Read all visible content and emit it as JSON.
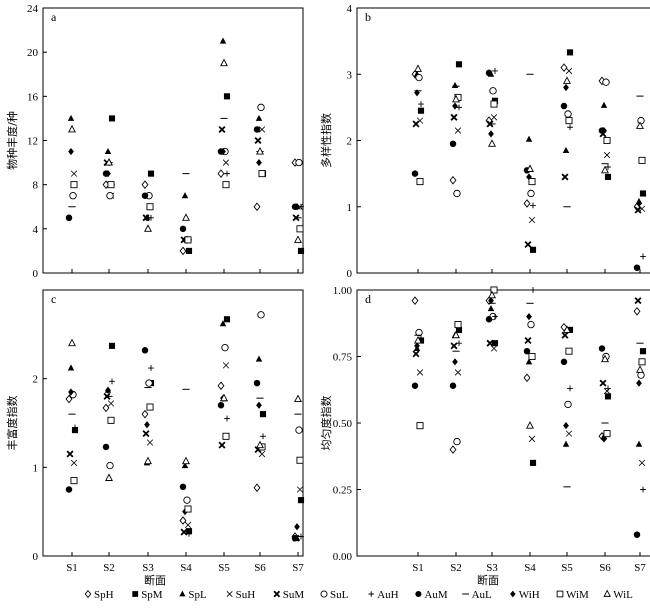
{
  "chart_data": [
    {
      "type": "scatter",
      "panel_label": "a",
      "ylabel": "物种丰度/种",
      "xlabel": "",
      "ylim": [
        0,
        24
      ],
      "yticks": [
        0,
        4,
        8,
        12,
        16,
        20,
        24
      ],
      "ytick_labels": [
        "0",
        "4",
        "8",
        "12",
        "16",
        "20",
        "24"
      ],
      "categories": [
        "S1",
        "S2",
        "S3",
        "S4",
        "S5",
        "S6",
        "S7"
      ],
      "series": [
        {
          "name": "SpH",
          "values": [
            null,
            8,
            8,
            2,
            9,
            6,
            10
          ]
        },
        {
          "name": "SpM",
          "values": [
            null,
            14,
            9,
            2,
            16,
            9,
            2
          ]
        },
        {
          "name": "SpL",
          "values": [
            14,
            11,
            5,
            7,
            21,
            14,
            6
          ]
        },
        {
          "name": "SuH",
          "values": [
            9,
            7,
            6,
            3,
            10,
            13,
            6
          ]
        },
        {
          "name": "SuM",
          "values": [
            null,
            10,
            5,
            3,
            13,
            12,
            5
          ]
        },
        {
          "name": "SuL",
          "values": [
            7,
            7,
            7,
            3,
            11,
            15,
            10
          ]
        },
        {
          "name": "AuH",
          "values": [
            null,
            8,
            5,
            3,
            9,
            9,
            6
          ]
        },
        {
          "name": "AuM",
          "values": [
            5,
            9,
            7,
            4,
            11,
            13,
            6
          ]
        },
        {
          "name": "AuL",
          "values": [
            6,
            10,
            5,
            9,
            14,
            11,
            5
          ]
        },
        {
          "name": "WiH",
          "values": [
            11,
            9,
            5,
            3,
            11,
            10,
            6
          ]
        },
        {
          "name": "WiM",
          "values": [
            8,
            8,
            6,
            3,
            8,
            9,
            4
          ]
        },
        {
          "name": "WiL",
          "values": [
            13,
            10,
            4,
            5,
            19,
            11,
            3
          ]
        }
      ]
    },
    {
      "type": "scatter",
      "panel_label": "b",
      "ylabel": "多样性指数",
      "xlabel": "",
      "ylim": [
        0,
        4
      ],
      "yticks": [
        0,
        1,
        2,
        3,
        4
      ],
      "ytick_labels": [
        "0",
        "1",
        "2",
        "3",
        "4"
      ],
      "categories": [
        "S1",
        "S2",
        "S3",
        "S4",
        "S5",
        "S6",
        "S7"
      ],
      "series": [
        {
          "name": "SpH",
          "values": [
            3.0,
            1.4,
            2.3,
            1.05,
            3.1,
            2.9,
            1.0
          ]
        },
        {
          "name": "SpM",
          "values": [
            2.45,
            3.15,
            2.6,
            0.35,
            3.33,
            1.45,
            1.2
          ]
        },
        {
          "name": "SpL",
          "values": [
            3.0,
            2.83,
            3.0,
            2.02,
            1.85,
            2.53,
            1.08
          ]
        },
        {
          "name": "SuH",
          "values": [
            2.3,
            2.15,
            2.35,
            0.8,
            3.05,
            1.78,
            0.97
          ]
        },
        {
          "name": "SuM",
          "values": [
            2.25,
            2.35,
            2.25,
            0.43,
            1.45,
            2.1,
            0.95
          ]
        },
        {
          "name": "SuL",
          "values": [
            2.95,
            1.2,
            2.75,
            1.2,
            2.4,
            2.88,
            2.3
          ]
        },
        {
          "name": "AuH",
          "values": [
            2.55,
            2.5,
            3.05,
            1.02,
            2.2,
            1.6,
            0.25
          ]
        },
        {
          "name": "AuM",
          "values": [
            1.5,
            1.95,
            3.02,
            1.55,
            2.52,
            2.15,
            0.08
          ]
        },
        {
          "name": "AuL",
          "values": [
            2.75,
            2.82,
            2.25,
            3.0,
            1.0,
            1.65,
            2.67
          ]
        },
        {
          "name": "WiH",
          "values": [
            2.72,
            2.52,
            2.1,
            1.45,
            2.8,
            2.15,
            1.05
          ]
        },
        {
          "name": "WiM",
          "values": [
            1.38,
            2.65,
            2.55,
            1.38,
            2.3,
            2.0,
            1.7
          ]
        },
        {
          "name": "WiL",
          "values": [
            3.08,
            2.62,
            1.95,
            1.57,
            2.9,
            1.55,
            2.22
          ]
        }
      ]
    },
    {
      "type": "scatter",
      "panel_label": "c",
      "ylabel": "丰富度指数",
      "xlabel": "断面",
      "ylim": [
        0,
        3
      ],
      "yticks": [
        0,
        1,
        2
      ],
      "ytick_labels": [
        "0",
        "1",
        "2"
      ],
      "categories": [
        "S1",
        "S2",
        "S3",
        "S4",
        "S5",
        "S6",
        "S7"
      ],
      "series": [
        {
          "name": "SpH",
          "values": [
            1.77,
            1.67,
            1.6,
            0.4,
            1.92,
            0.77,
            0.22
          ]
        },
        {
          "name": "SpM",
          "values": [
            1.42,
            2.37,
            1.95,
            0.28,
            2.67,
            1.6,
            0.63
          ]
        },
        {
          "name": "SpL",
          "values": [
            2.12,
            1.87,
            1.05,
            1.02,
            2.62,
            2.22,
            0.2
          ]
        },
        {
          "name": "SuH",
          "values": [
            1.05,
            1.72,
            1.28,
            0.35,
            2.15,
            1.15,
            0.75
          ]
        },
        {
          "name": "SuM",
          "values": [
            1.15,
            1.8,
            1.38,
            0.27,
            1.25,
            1.2,
            0.2
          ]
        },
        {
          "name": "SuL",
          "values": [
            1.82,
            1.02,
            1.95,
            0.63,
            2.35,
            2.72,
            1.42
          ]
        },
        {
          "name": "AuH",
          "values": [
            1.45,
            1.97,
            2.12,
            0.25,
            1.55,
            1.35,
            0.22
          ]
        },
        {
          "name": "AuM",
          "values": [
            0.75,
            1.23,
            2.32,
            0.78,
            1.7,
            1.95,
            0.2
          ]
        },
        {
          "name": "AuL",
          "values": [
            1.6,
            1.8,
            1.9,
            1.88,
            1.75,
            1.78,
            1.6
          ]
        },
        {
          "name": "WiH",
          "values": [
            1.85,
            1.87,
            1.48,
            0.5,
            1.78,
            1.7,
            0.33
          ]
        },
        {
          "name": "WiM",
          "values": [
            0.85,
            1.53,
            1.68,
            0.53,
            1.35,
            1.23,
            1.08
          ]
        },
        {
          "name": "WiL",
          "values": [
            2.4,
            0.88,
            1.07,
            1.07,
            1.78,
            1.25,
            1.77
          ]
        }
      ]
    },
    {
      "type": "scatter",
      "panel_label": "d",
      "ylabel": "均匀度指数",
      "xlabel": "断面",
      "ylim": [
        0,
        1.0
      ],
      "yticks": [
        0,
        0.25,
        0.5,
        0.75,
        1.0
      ],
      "ytick_labels": [
        "0.00",
        "0.25",
        "0.50",
        "0.75",
        "1.00"
      ],
      "categories": [
        "S1",
        "S2",
        "S3",
        "S4",
        "S5",
        "S6",
        "S7"
      ],
      "series": [
        {
          "name": "SpH",
          "values": [
            0.96,
            0.4,
            0.96,
            0.67,
            0.86,
            0.45,
            0.92
          ]
        },
        {
          "name": "SpM",
          "values": [
            0.81,
            0.85,
            0.8,
            0.35,
            0.85,
            0.6,
            0.77
          ]
        },
        {
          "name": "SpL",
          "values": [
            0.78,
            0.83,
            0.93,
            0.73,
            0.42,
            0.45,
            0.42
          ]
        },
        {
          "name": "SuH",
          "values": [
            0.69,
            0.69,
            0.78,
            0.44,
            0.46,
            0.62,
            0.35
          ]
        },
        {
          "name": "SuM",
          "values": [
            0.76,
            0.79,
            0.8,
            0.81,
            0.83,
            0.65,
            0.96
          ]
        },
        {
          "name": "SuL",
          "values": [
            0.84,
            0.43,
            0.9,
            0.87,
            0.57,
            0.75,
            0.68
          ]
        },
        {
          "name": "AuH",
          "values": [
            0.82,
            0.8,
            0.9,
            1.0,
            0.63,
            0.63,
            0.25
          ]
        },
        {
          "name": "AuM",
          "values": [
            0.64,
            0.64,
            0.89,
            0.77,
            0.73,
            0.78,
            0.08
          ]
        },
        {
          "name": "AuL",
          "values": [
            0.83,
            0.77,
            0.95,
            0.95,
            0.26,
            0.5,
            0.8
          ]
        },
        {
          "name": "WiH",
          "values": [
            0.79,
            0.73,
            0.96,
            0.9,
            0.49,
            0.44,
            0.65
          ]
        },
        {
          "name": "WiM",
          "values": [
            0.49,
            0.87,
            1.0,
            0.75,
            0.77,
            0.46,
            0.73
          ]
        },
        {
          "name": "WiL",
          "values": [
            0.81,
            0.83,
            0.98,
            0.49,
            0.85,
            0.74,
            0.7
          ]
        }
      ]
    }
  ],
  "legend": {
    "placement": "bottom",
    "entries": [
      {
        "name": "SpH",
        "marker": "diamond-open"
      },
      {
        "name": "SpM",
        "marker": "square-filled"
      },
      {
        "name": "SpL",
        "marker": "triangle-filled"
      },
      {
        "name": "SuH",
        "marker": "x-thin"
      },
      {
        "name": "SuM",
        "marker": "x-bold"
      },
      {
        "name": "SuL",
        "marker": "circle-open"
      },
      {
        "name": "AuH",
        "marker": "plus"
      },
      {
        "name": "AuM",
        "marker": "circle-filled"
      },
      {
        "name": "AuL",
        "marker": "dash"
      },
      {
        "name": "WiH",
        "marker": "diamond-filled"
      },
      {
        "name": "WiM",
        "marker": "square-open"
      },
      {
        "name": "WiL",
        "marker": "triangle-open"
      }
    ]
  }
}
